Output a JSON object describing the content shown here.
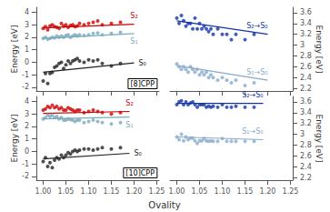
{
  "chart_data": [
    {
      "type": "scatter",
      "title": "[8]CPP",
      "ylabel": "Energy [eV]",
      "xlim": [
        0.985,
        1.255
      ],
      "xticks": [
        {
          "value": 1.0,
          "label": "1.00"
        },
        {
          "value": 1.05,
          "label": "1.05"
        },
        {
          "value": 1.1,
          "label": "1.10"
        },
        {
          "value": 1.15,
          "label": "1.15"
        },
        {
          "value": 1.2,
          "label": "1.20"
        },
        {
          "value": 1.25,
          "label": "1.25"
        }
      ],
      "ylim": [
        -2.3,
        4.4
      ],
      "yticks": [
        -2,
        -1,
        0,
        1,
        2,
        3,
        4
      ],
      "grid": false,
      "tick_labels": "y",
      "series": [
        {
          "name": "S₂",
          "color": "#cc0000",
          "x": [
            1.0,
            1.005,
            1.01,
            1.015,
            1.02,
            1.025,
            1.03,
            1.035,
            1.04,
            1.045,
            1.05,
            1.055,
            1.06,
            1.065,
            1.07,
            1.075,
            1.08,
            1.09,
            1.1,
            1.11,
            1.12,
            1.13,
            1.15,
            1.17
          ],
          "values": [
            2.7,
            2.85,
            2.6,
            2.9,
            3.0,
            2.85,
            2.8,
            2.7,
            3.1,
            2.9,
            3.0,
            2.8,
            2.95,
            3.0,
            2.85,
            2.9,
            3.1,
            3.0,
            3.1,
            3.2,
            3.3,
            3.0,
            3.1,
            3.2
          ],
          "fit_x": [
            1.0,
            1.2
          ],
          "fit_values": [
            2.75,
            3.05
          ]
        },
        {
          "name": "S₁",
          "color": "#7aaabb",
          "x": [
            1.0,
            1.005,
            1.01,
            1.015,
            1.02,
            1.025,
            1.03,
            1.035,
            1.04,
            1.045,
            1.05,
            1.055,
            1.06,
            1.065,
            1.07,
            1.075,
            1.08,
            1.09,
            1.1,
            1.11,
            1.12,
            1.13,
            1.15,
            1.17
          ],
          "values": [
            1.9,
            2.0,
            1.85,
            1.9,
            2.0,
            1.95,
            2.1,
            2.0,
            2.1,
            2.0,
            2.15,
            2.2,
            2.0,
            2.1,
            2.2,
            2.1,
            2.2,
            2.15,
            2.2,
            2.3,
            2.35,
            2.2,
            2.3,
            2.4
          ],
          "fit_x": [
            1.0,
            1.2
          ],
          "fit_values": [
            1.9,
            2.3
          ]
        },
        {
          "name": "S₀",
          "color": "#222222",
          "x": [
            1.0,
            1.005,
            1.01,
            1.015,
            1.02,
            1.025,
            1.03,
            1.035,
            1.04,
            1.045,
            1.05,
            1.055,
            1.06,
            1.065,
            1.07,
            1.075,
            1.08,
            1.09,
            1.1,
            1.11,
            1.12,
            1.13,
            1.15,
            1.17
          ],
          "values": [
            -1.5,
            -0.9,
            -1.7,
            -0.9,
            -0.8,
            -0.4,
            -0.3,
            -0.1,
            0.0,
            -0.5,
            -0.2,
            0.1,
            -0.1,
            0.1,
            0.2,
            0.3,
            0.1,
            0.0,
            0.2,
            0.1,
            0.2,
            -0.1,
            -0.3,
            -0.1
          ],
          "fit_x": [
            1.0,
            1.2
          ],
          "fit_values": [
            -0.8,
            -0.05
          ]
        }
      ]
    },
    {
      "type": "scatter",
      "ylabel": "Energy [eV]",
      "xlim": [
        0.985,
        1.255
      ],
      "xticks": [
        {
          "value": 1.0,
          "label": "1.00"
        },
        {
          "value": 1.05,
          "label": "1.05"
        },
        {
          "value": 1.1,
          "label": "1.10"
        },
        {
          "value": 1.15,
          "label": "1.15"
        },
        {
          "value": 1.2,
          "label": "1.20"
        },
        {
          "value": 1.25,
          "label": "1.25"
        }
      ],
      "ylim": [
        2.15,
        3.7
      ],
      "yticks": [
        2.2,
        2.4,
        2.6,
        2.8,
        3.0,
        3.2,
        3.4,
        3.6
      ],
      "grid": false,
      "tick_labels": "y",
      "series": [
        {
          "name": "S₂→S₀",
          "color": "#1133aa",
          "x": [
            1.0,
            1.005,
            1.01,
            1.015,
            1.02,
            1.025,
            1.03,
            1.035,
            1.04,
            1.045,
            1.05,
            1.055,
            1.06,
            1.065,
            1.07,
            1.075,
            1.08,
            1.09,
            1.1,
            1.11,
            1.12,
            1.13,
            1.15,
            1.17
          ],
          "values": [
            3.5,
            3.4,
            3.55,
            3.45,
            3.35,
            3.4,
            3.4,
            3.3,
            3.5,
            3.3,
            3.4,
            3.3,
            3.35,
            3.3,
            3.25,
            3.3,
            3.2,
            3.3,
            3.2,
            3.2,
            3.1,
            3.2,
            3.1,
            3.2
          ],
          "fit_x": [
            1.0,
            1.2
          ],
          "fit_values": [
            3.45,
            3.2
          ]
        },
        {
          "name": "S₁→S₀",
          "color": "#88aacc",
          "x": [
            1.0,
            1.005,
            1.01,
            1.015,
            1.02,
            1.025,
            1.03,
            1.035,
            1.04,
            1.045,
            1.05,
            1.055,
            1.06,
            1.065,
            1.07,
            1.075,
            1.08,
            1.09,
            1.1,
            1.11,
            1.12,
            1.13,
            1.15,
            1.17
          ],
          "values": [
            2.65,
            2.6,
            2.55,
            2.6,
            2.55,
            2.5,
            2.6,
            2.55,
            2.5,
            2.55,
            2.45,
            2.5,
            2.45,
            2.5,
            2.4,
            2.45,
            2.4,
            2.35,
            2.4,
            2.35,
            2.3,
            2.35,
            2.25,
            2.3
          ],
          "fit_x": [
            1.0,
            1.2
          ],
          "fit_values": [
            2.62,
            2.35
          ]
        }
      ]
    },
    {
      "type": "scatter",
      "title": "[10]CPP",
      "ylabel": "Energy [eV]",
      "xlabel": "Ovality",
      "xlim": [
        0.985,
        1.255
      ],
      "xticks": [
        {
          "value": 1.0,
          "label": "1.00"
        },
        {
          "value": 1.05,
          "label": "1.05"
        },
        {
          "value": 1.1,
          "label": "1.10"
        },
        {
          "value": 1.15,
          "label": "1.15"
        },
        {
          "value": 1.2,
          "label": "1.20"
        },
        {
          "value": 1.25,
          "label": "1.25"
        }
      ],
      "ylim": [
        -2.3,
        4.4
      ],
      "yticks": [
        -2,
        -1,
        0,
        1,
        2,
        3,
        4
      ],
      "grid": false,
      "series": [
        {
          "name": "S₂",
          "color": "#cc0000",
          "x": [
            1.0,
            1.005,
            1.01,
            1.015,
            1.02,
            1.025,
            1.03,
            1.035,
            1.04,
            1.045,
            1.05,
            1.055,
            1.06,
            1.065,
            1.07,
            1.075,
            1.08,
            1.09,
            1.1,
            1.11,
            1.12,
            1.13,
            1.15,
            1.17
          ],
          "values": [
            3.3,
            3.4,
            3.6,
            3.5,
            3.7,
            3.5,
            3.6,
            3.4,
            3.5,
            3.3,
            3.3,
            3.5,
            3.4,
            3.3,
            3.2,
            3.3,
            3.3,
            3.1,
            3.2,
            3.3,
            3.2,
            3.1,
            3.0,
            3.1
          ],
          "fit_x": [
            1.0,
            1.19
          ],
          "fit_values": [
            3.05,
            3.2
          ]
        },
        {
          "name": "S₁",
          "color": "#7aaabb",
          "x": [
            1.0,
            1.005,
            1.01,
            1.015,
            1.02,
            1.025,
            1.03,
            1.035,
            1.04,
            1.045,
            1.05,
            1.055,
            1.06,
            1.065,
            1.07,
            1.075,
            1.08,
            1.09,
            1.1,
            1.11,
            1.12,
            1.13,
            1.15,
            1.17
          ],
          "values": [
            2.6,
            2.7,
            2.9,
            2.8,
            2.9,
            2.7,
            2.8,
            2.6,
            2.7,
            2.5,
            2.5,
            2.6,
            2.55,
            2.5,
            2.4,
            2.5,
            2.5,
            2.3,
            2.4,
            2.5,
            2.4,
            2.3,
            2.2,
            2.3
          ],
          "fit_x": [
            1.0,
            1.19
          ],
          "fit_values": [
            2.6,
            2.75
          ]
        },
        {
          "name": "S₀",
          "color": "#222222",
          "x": [
            1.0,
            1.005,
            1.01,
            1.015,
            1.02,
            1.025,
            1.03,
            1.035,
            1.04,
            1.045,
            1.05,
            1.055,
            1.06,
            1.065,
            1.07,
            1.075,
            1.08,
            1.09,
            1.1,
            1.11,
            1.12,
            1.13,
            1.15,
            1.17
          ],
          "values": [
            -0.8,
            -0.5,
            -1.2,
            -0.9,
            -1.3,
            -0.7,
            -0.5,
            -0.6,
            -0.3,
            -0.5,
            -0.3,
            -0.1,
            -0.2,
            0.0,
            0.1,
            0.0,
            0.1,
            0.2,
            0.2,
            0.1,
            0.2,
            0.3,
            0.2,
            0.3
          ],
          "fit_x": [
            1.0,
            1.19
          ],
          "fit_values": [
            -0.6,
            -0.15
          ]
        }
      ]
    },
    {
      "type": "scatter",
      "ylabel": "Energy [eV]",
      "xlim": [
        0.985,
        1.255
      ],
      "xticks": [
        {
          "value": 1.0,
          "label": "1.00"
        },
        {
          "value": 1.05,
          "label": "1.05"
        },
        {
          "value": 1.1,
          "label": "1.10"
        },
        {
          "value": 1.15,
          "label": "1.15"
        },
        {
          "value": 1.2,
          "label": "1.20"
        },
        {
          "value": 1.25,
          "label": "1.25"
        }
      ],
      "ylim": [
        2.15,
        3.7
      ],
      "yticks": [
        2.2,
        2.4,
        2.6,
        2.8,
        3.0,
        3.2,
        3.4,
        3.6
      ],
      "grid": false,
      "series": [
        {
          "name": "S₂→S₀",
          "color": "#1133aa",
          "x": [
            1.0,
            1.005,
            1.01,
            1.015,
            1.02,
            1.025,
            1.03,
            1.035,
            1.04,
            1.045,
            1.05,
            1.055,
            1.06,
            1.065,
            1.07,
            1.075,
            1.08,
            1.09,
            1.1,
            1.11,
            1.12,
            1.13,
            1.15,
            1.17
          ],
          "values": [
            3.55,
            3.6,
            3.62,
            3.55,
            3.6,
            3.55,
            3.58,
            3.6,
            3.55,
            3.5,
            3.55,
            3.55,
            3.55,
            3.5,
            3.52,
            3.5,
            3.52,
            3.5,
            3.55,
            3.5,
            3.5,
            3.52,
            3.5,
            3.5
          ],
          "fit_x": [
            1.0,
            1.19
          ],
          "fit_values": [
            3.57,
            3.57
          ]
        },
        {
          "name": "S₁→S₀",
          "color": "#88aacc",
          "x": [
            1.0,
            1.005,
            1.01,
            1.015,
            1.02,
            1.025,
            1.03,
            1.035,
            1.04,
            1.045,
            1.05,
            1.055,
            1.06,
            1.065,
            1.07,
            1.075,
            1.08,
            1.09,
            1.1,
            1.11,
            1.12,
            1.13,
            1.15,
            1.17
          ],
          "values": [
            2.95,
            2.9,
            3.0,
            2.88,
            2.95,
            2.9,
            2.93,
            2.93,
            2.88,
            2.83,
            2.88,
            2.88,
            2.92,
            2.88,
            2.87,
            2.88,
            2.87,
            2.87,
            2.92,
            2.87,
            2.87,
            2.87,
            2.87,
            2.87
          ],
          "fit_x": [
            1.0,
            1.19
          ],
          "fit_values": [
            2.95,
            2.9
          ]
        }
      ]
    }
  ]
}
